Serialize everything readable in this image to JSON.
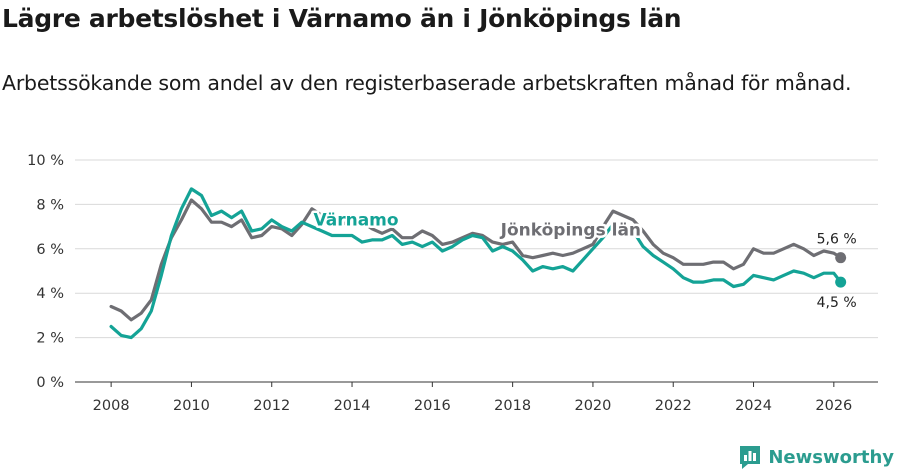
{
  "header": {
    "title": "Lägre arbetslöshet i Värnamo än i Jönköpings län",
    "subtitle": "Arbetssökande som andel av den registerbaserade arbetskraften månad för månad."
  },
  "brand": {
    "name": "Newsworthy",
    "color": "#2b9c8f"
  },
  "colors": {
    "varnamo": "#14a396",
    "lan": "#6e6e73",
    "grid": "#d9d9d9",
    "axis": "#333333"
  },
  "chart_data": {
    "type": "line",
    "title": "Lägre arbetslöshet i Värnamo än i Jönköpings län",
    "subtitle": "Arbetssökande som andel av den registerbaserade arbetskraften månad för månad.",
    "xlabel": "",
    "ylabel": "",
    "xlim": [
      2007.1,
      2027.1
    ],
    "ylim": [
      0,
      10
    ],
    "grid": true,
    "x_ticks": [
      2008,
      2010,
      2012,
      2014,
      2016,
      2018,
      2020,
      2022,
      2024,
      2026
    ],
    "x_tick_labels": [
      "2008",
      "2010",
      "2012",
      "2014",
      "2016",
      "2018",
      "2020",
      "2022",
      "2024",
      "2026"
    ],
    "y_ticks": [
      0,
      2,
      4,
      6,
      8,
      10
    ],
    "y_tick_labels": [
      "0 %",
      "2 %",
      "4 %",
      "6 %",
      "8 %",
      "10 %"
    ],
    "series": [
      {
        "name": "Jönköpings län",
        "end_label": "5,6 %",
        "points": [
          [
            2008.0,
            3.4
          ],
          [
            2008.25,
            3.2
          ],
          [
            2008.5,
            2.8
          ],
          [
            2008.75,
            3.1
          ],
          [
            2009.0,
            3.7
          ],
          [
            2009.25,
            5.3
          ],
          [
            2009.5,
            6.5
          ],
          [
            2009.75,
            7.3
          ],
          [
            2010.0,
            8.2
          ],
          [
            2010.25,
            7.8
          ],
          [
            2010.5,
            7.2
          ],
          [
            2010.75,
            7.2
          ],
          [
            2011.0,
            7.0
          ],
          [
            2011.25,
            7.3
          ],
          [
            2011.5,
            6.5
          ],
          [
            2011.75,
            6.6
          ],
          [
            2012.0,
            7.0
          ],
          [
            2012.25,
            6.9
          ],
          [
            2012.5,
            6.6
          ],
          [
            2012.75,
            7.1
          ],
          [
            2013.0,
            7.8
          ],
          [
            2013.25,
            7.5
          ],
          [
            2013.5,
            7.2
          ],
          [
            2013.75,
            7.1
          ],
          [
            2014.0,
            7.3
          ],
          [
            2014.25,
            7.2
          ],
          [
            2014.5,
            6.9
          ],
          [
            2014.75,
            6.7
          ],
          [
            2015.0,
            6.9
          ],
          [
            2015.25,
            6.5
          ],
          [
            2015.5,
            6.5
          ],
          [
            2015.75,
            6.8
          ],
          [
            2016.0,
            6.6
          ],
          [
            2016.25,
            6.2
          ],
          [
            2016.5,
            6.3
          ],
          [
            2016.75,
            6.5
          ],
          [
            2017.0,
            6.7
          ],
          [
            2017.25,
            6.6
          ],
          [
            2017.5,
            6.3
          ],
          [
            2017.75,
            6.2
          ],
          [
            2018.0,
            6.3
          ],
          [
            2018.25,
            5.7
          ],
          [
            2018.5,
            5.6
          ],
          [
            2018.75,
            5.7
          ],
          [
            2019.0,
            5.8
          ],
          [
            2019.25,
            5.7
          ],
          [
            2019.5,
            5.8
          ],
          [
            2019.75,
            6.0
          ],
          [
            2020.0,
            6.2
          ],
          [
            2020.25,
            7.0
          ],
          [
            2020.5,
            7.7
          ],
          [
            2020.75,
            7.5
          ],
          [
            2021.0,
            7.3
          ],
          [
            2021.25,
            6.8
          ],
          [
            2021.5,
            6.2
          ],
          [
            2021.75,
            5.8
          ],
          [
            2022.0,
            5.6
          ],
          [
            2022.25,
            5.3
          ],
          [
            2022.5,
            5.3
          ],
          [
            2022.75,
            5.3
          ],
          [
            2023.0,
            5.4
          ],
          [
            2023.25,
            5.4
          ],
          [
            2023.5,
            5.1
          ],
          [
            2023.75,
            5.3
          ],
          [
            2024.0,
            6.0
          ],
          [
            2024.25,
            5.8
          ],
          [
            2024.5,
            5.8
          ],
          [
            2024.75,
            6.0
          ],
          [
            2025.0,
            6.2
          ],
          [
            2025.25,
            6.0
          ],
          [
            2025.5,
            5.7
          ],
          [
            2025.75,
            5.9
          ],
          [
            2026.0,
            5.8
          ],
          [
            2026.17,
            5.6
          ]
        ]
      },
      {
        "name": "Värnamo",
        "end_label": "4,5 %",
        "points": [
          [
            2008.0,
            2.5
          ],
          [
            2008.25,
            2.1
          ],
          [
            2008.5,
            2.0
          ],
          [
            2008.75,
            2.4
          ],
          [
            2009.0,
            3.2
          ],
          [
            2009.25,
            4.8
          ],
          [
            2009.5,
            6.6
          ],
          [
            2009.75,
            7.8
          ],
          [
            2010.0,
            8.7
          ],
          [
            2010.25,
            8.4
          ],
          [
            2010.5,
            7.5
          ],
          [
            2010.75,
            7.7
          ],
          [
            2011.0,
            7.4
          ],
          [
            2011.25,
            7.7
          ],
          [
            2011.5,
            6.8
          ],
          [
            2011.75,
            6.9
          ],
          [
            2012.0,
            7.3
          ],
          [
            2012.25,
            7.0
          ],
          [
            2012.5,
            6.8
          ],
          [
            2012.75,
            7.2
          ],
          [
            2013.0,
            7.0
          ],
          [
            2013.25,
            6.8
          ],
          [
            2013.5,
            6.6
          ],
          [
            2013.75,
            6.6
          ],
          [
            2014.0,
            6.6
          ],
          [
            2014.25,
            6.3
          ],
          [
            2014.5,
            6.4
          ],
          [
            2014.75,
            6.4
          ],
          [
            2015.0,
            6.6
          ],
          [
            2015.25,
            6.2
          ],
          [
            2015.5,
            6.3
          ],
          [
            2015.75,
            6.1
          ],
          [
            2016.0,
            6.3
          ],
          [
            2016.25,
            5.9
          ],
          [
            2016.5,
            6.1
          ],
          [
            2016.75,
            6.4
          ],
          [
            2017.0,
            6.6
          ],
          [
            2017.25,
            6.5
          ],
          [
            2017.5,
            5.9
          ],
          [
            2017.75,
            6.1
          ],
          [
            2018.0,
            5.9
          ],
          [
            2018.25,
            5.5
          ],
          [
            2018.5,
            5.0
          ],
          [
            2018.75,
            5.2
          ],
          [
            2019.0,
            5.1
          ],
          [
            2019.25,
            5.2
          ],
          [
            2019.5,
            5.0
          ],
          [
            2019.75,
            5.5
          ],
          [
            2020.0,
            6.0
          ],
          [
            2020.25,
            6.5
          ],
          [
            2020.5,
            7.1
          ],
          [
            2020.75,
            7.0
          ],
          [
            2021.0,
            6.8
          ],
          [
            2021.25,
            6.1
          ],
          [
            2021.5,
            5.7
          ],
          [
            2021.75,
            5.4
          ],
          [
            2022.0,
            5.1
          ],
          [
            2022.25,
            4.7
          ],
          [
            2022.5,
            4.5
          ],
          [
            2022.75,
            4.5
          ],
          [
            2023.0,
            4.6
          ],
          [
            2023.25,
            4.6
          ],
          [
            2023.5,
            4.3
          ],
          [
            2023.75,
            4.4
          ],
          [
            2024.0,
            4.8
          ],
          [
            2024.25,
            4.7
          ],
          [
            2024.5,
            4.6
          ],
          [
            2024.75,
            4.8
          ],
          [
            2025.0,
            5.0
          ],
          [
            2025.25,
            4.9
          ],
          [
            2025.5,
            4.7
          ],
          [
            2025.75,
            4.9
          ],
          [
            2026.0,
            4.9
          ],
          [
            2026.17,
            4.5
          ]
        ]
      }
    ],
    "annotations": [
      {
        "text": "Värnamo",
        "series": "Värnamo",
        "at_x": 2014.1,
        "at_y": 7.05
      },
      {
        "text": "Jönköpings län",
        "series": "Jönköpings län",
        "at_x": 2019.45,
        "at_y": 6.6
      }
    ]
  }
}
